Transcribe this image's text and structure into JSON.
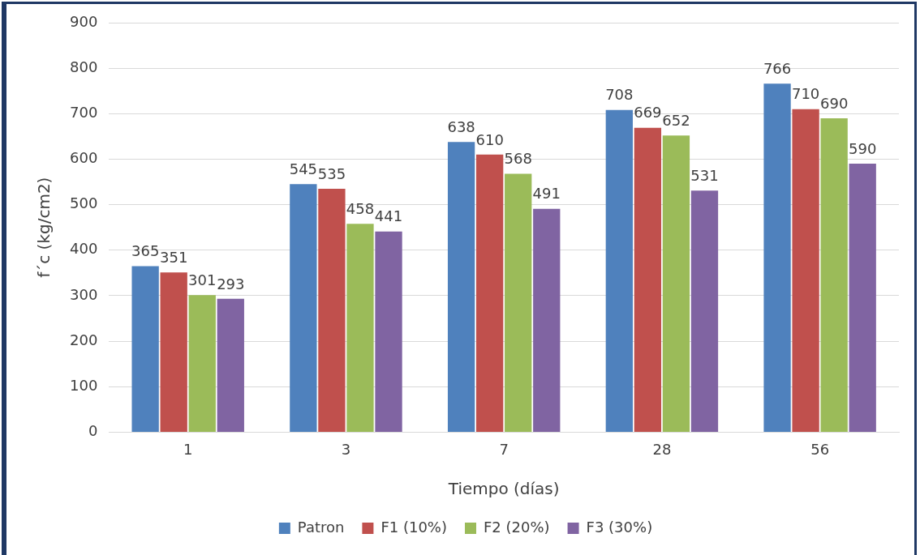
{
  "chart_data": {
    "type": "bar",
    "xlabel": "Tiempo (días)",
    "ylabel": "f´c (kg/cm2)",
    "categories": [
      "1",
      "3",
      "7",
      "28",
      "56"
    ],
    "series": [
      {
        "name": "Patron",
        "color": "#4f81bd",
        "values": [
          365,
          545,
          638,
          708,
          766
        ]
      },
      {
        "name": "F1 (10%)",
        "color": "#c0504d",
        "values": [
          351,
          535,
          610,
          669,
          710
        ]
      },
      {
        "name": "F2 (20%)",
        "color": "#9bbb59",
        "values": [
          301,
          458,
          568,
          652,
          690
        ]
      },
      {
        "name": "F3 (30%)",
        "color": "#8064a2",
        "values": [
          293,
          441,
          491,
          531,
          590
        ]
      }
    ],
    "ylim": [
      0,
      900
    ],
    "yticks": [
      0,
      100,
      200,
      300,
      400,
      500,
      600,
      700,
      800,
      900
    ],
    "grid": "y",
    "legend": "bottom",
    "data_labels": true
  }
}
